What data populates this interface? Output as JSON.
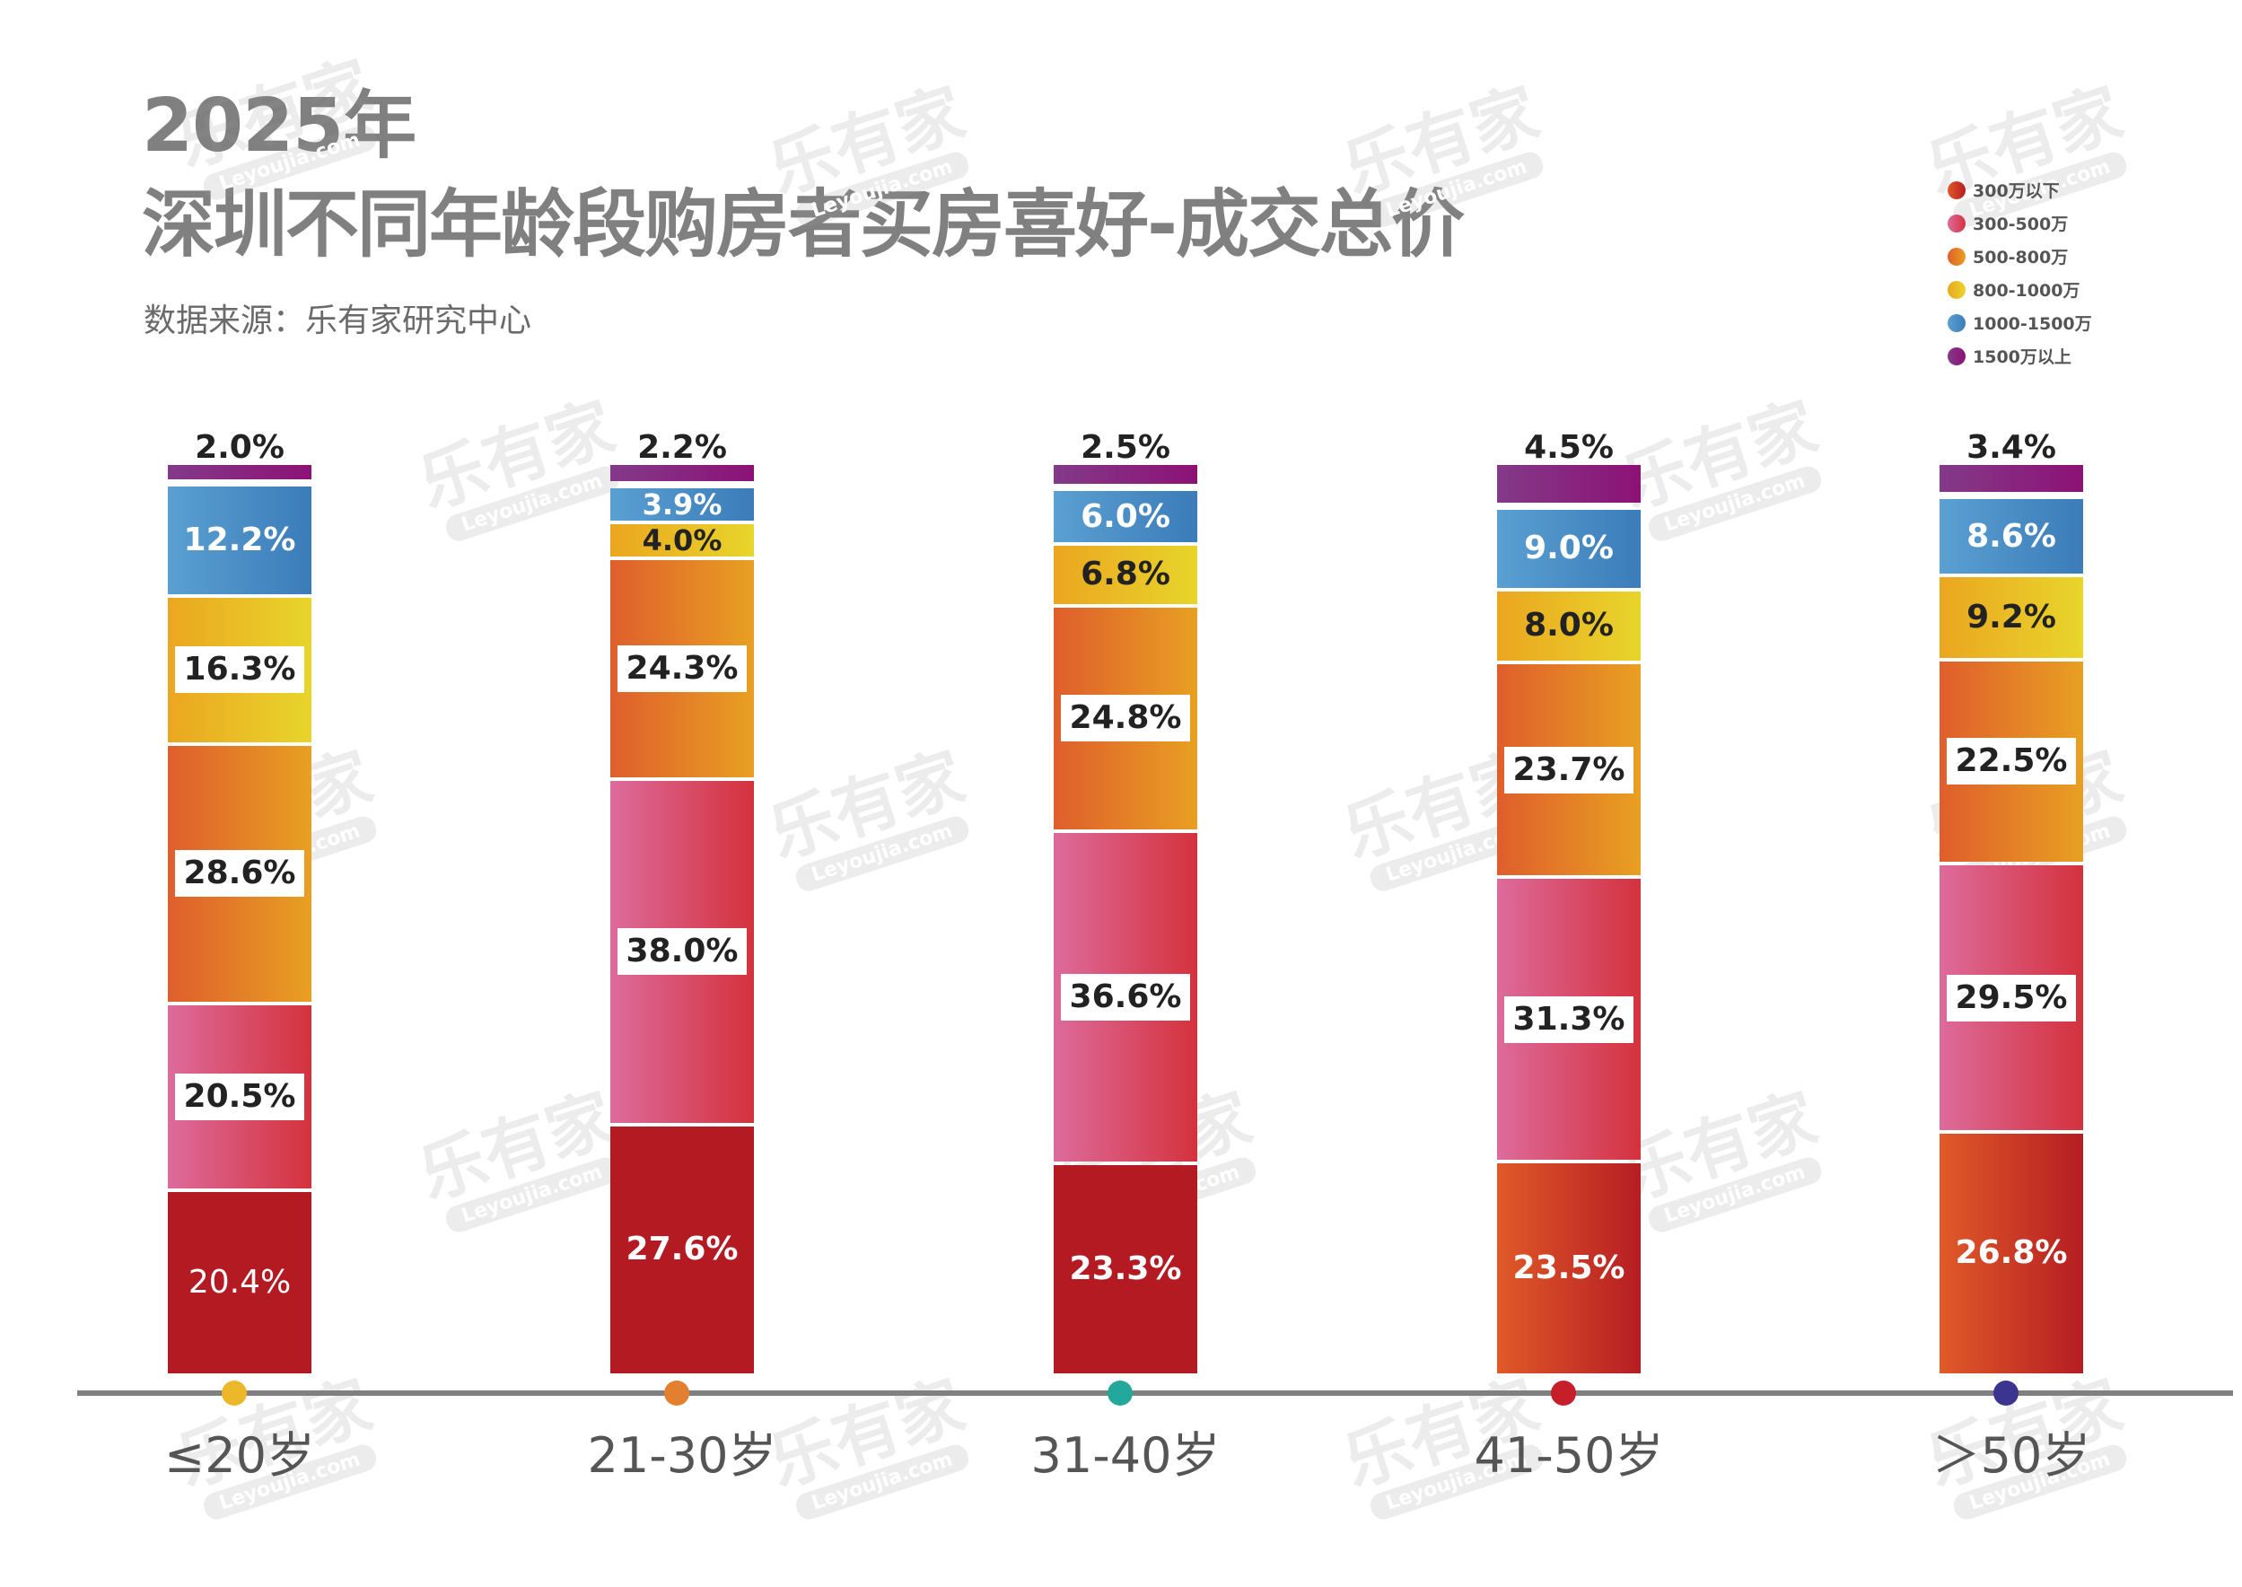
{
  "header": {
    "year": "2025年",
    "title": "深圳不同年龄段购房者买房喜好-成交总价",
    "source": "数据来源：乐有家研究中心"
  },
  "legend": [
    {
      "label": "300万以下",
      "color": "#c8281e",
      "gradient": [
        "#e05a28",
        "#b61d23"
      ]
    },
    {
      "label": "300-500万",
      "color": "#d94f73",
      "gradient": [
        "#dd6b9c",
        "#d4323c"
      ]
    },
    {
      "label": "500-800万",
      "color": "#e2702a",
      "gradient": [
        "#df5e2c",
        "#e8a022"
      ]
    },
    {
      "label": "800-1000万",
      "color": "#e9b724",
      "gradient": [
        "#eba620",
        "#e8d52b"
      ]
    },
    {
      "label": "1000-1500万",
      "color": "#4a8cc4",
      "gradient": [
        "#5aa0d2",
        "#3b7cb9"
      ]
    },
    {
      "label": "1500万以上",
      "color": "#7e2a82",
      "gradient": [
        "#833a88",
        "#8c1276"
      ]
    }
  ],
  "watermark": {
    "cn": "乐有家",
    "en": "Leyoujia.com",
    "mark": "®"
  },
  "axis": {
    "categories": [
      {
        "label": "≤20岁",
        "marker_color": "#ecb82a"
      },
      {
        "label": "21-30岁",
        "marker_color": "#e2802f"
      },
      {
        "label": "31-40岁",
        "marker_color": "#23a99b"
      },
      {
        "label": "41-50岁",
        "marker_color": "#c61f2a"
      },
      {
        "label": "＞50岁",
        "marker_color": "#3b3590"
      }
    ]
  },
  "bars": [
    {
      "labels": [
        "20.4%",
        "20.5%",
        "28.6%",
        "16.3%",
        "12.2%",
        "2.0%"
      ]
    },
    {
      "labels": [
        "27.6%",
        "38.0%",
        "24.3%",
        "4.0%",
        "3.9%",
        "2.2%"
      ]
    },
    {
      "labels": [
        "23.3%",
        "36.6%",
        "24.8%",
        "6.8%",
        "6.0%",
        "2.5%"
      ]
    },
    {
      "labels": [
        "23.5%",
        "31.3%",
        "23.7%",
        "8.0%",
        "9.0%",
        "4.5%"
      ]
    },
    {
      "labels": [
        "26.8%",
        "29.5%",
        "22.5%",
        "9.2%",
        "8.6%",
        "3.4%"
      ]
    }
  ],
  "chart_data": {
    "type": "bar",
    "stacked": true,
    "title": "2025年 深圳不同年龄段购房者买房喜好-成交总价",
    "subtitle": "数据来源：乐有家研究中心",
    "xlabel": "",
    "ylabel": "",
    "categories": [
      "≤20岁",
      "21-30岁",
      "31-40岁",
      "41-50岁",
      "＞50岁"
    ],
    "series": [
      {
        "name": "300万以下",
        "values": [
          20.4,
          27.6,
          23.3,
          23.5,
          26.8
        ]
      },
      {
        "name": "300-500万",
        "values": [
          20.5,
          38.0,
          36.6,
          31.3,
          29.5
        ]
      },
      {
        "name": "500-800万",
        "values": [
          28.6,
          24.3,
          24.8,
          23.7,
          22.5
        ]
      },
      {
        "name": "800-1000万",
        "values": [
          16.3,
          4.0,
          6.8,
          8.0,
          9.2
        ]
      },
      {
        "name": "1000-1500万",
        "values": [
          12.2,
          3.9,
          6.0,
          9.0,
          8.6
        ]
      },
      {
        "name": "1500万以上",
        "values": [
          2.0,
          2.2,
          2.5,
          4.5,
          3.4
        ]
      }
    ],
    "unit": "%",
    "ylim": [
      0,
      100
    ],
    "grid": false,
    "legend_position": "top-right",
    "data_labels": true
  }
}
